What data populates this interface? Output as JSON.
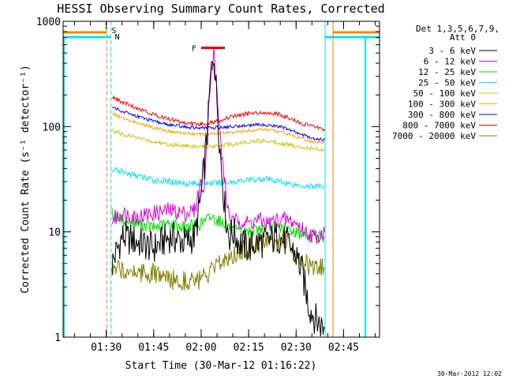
{
  "chart_data": {
    "type": "line",
    "title": "HESSI Observing Summary Count Rates, Corrected",
    "xlabel": "Start Time (30-Mar-12 01:16:22)",
    "ylabel": "Corrected Count Rate (s⁻¹ detector⁻¹)",
    "yscale": "log",
    "ylim": [
      1,
      1000
    ],
    "xlim": [
      "01:16:22",
      "02:56:22"
    ],
    "x_ticks": [
      "01:30",
      "01:45",
      "02:00",
      "02:15",
      "02:30",
      "02:45"
    ],
    "y_ticks": [
      "1",
      "10",
      "100",
      "1000"
    ],
    "grid": false,
    "legend_position": "right",
    "legend_header": [
      "Det 1,3,5,6,7,9,",
      "Att 0"
    ],
    "timestamp": "30-Mar-2012 12:02",
    "markers": {
      "saa_label": "S",
      "night_label": "N",
      "flare_label": "F",
      "saa_color": "#ff8000",
      "night_color": "#00e5ee",
      "flare_color": "#e00000",
      "saa_end": "01:30:10",
      "night_end": "01:31:30",
      "night_start": "02:39:10",
      "saa_start": "02:41:40",
      "instrument_off_before": "01:31:50",
      "instrument_off_after": "02:39:00",
      "flare_interval": [
        "02:00:00",
        "02:07:30"
      ],
      "flare_level": 560
    },
    "series": [
      {
        "name": "3 - 6 keV",
        "color": "#000000",
        "x": [
          "01:31:50",
          "01:35",
          "01:40",
          "01:45",
          "01:50",
          "01:55",
          "01:58",
          "02:00",
          "02:02",
          "02:03",
          "02:04",
          "02:05",
          "02:06",
          "02:07",
          "02:08",
          "02:09",
          "02:10",
          "02:12",
          "02:15",
          "02:18",
          "02:21",
          "02:24",
          "02:27",
          "02:30",
          "02:32",
          "02:34",
          "02:36",
          "02:39"
        ],
        "values": [
          5,
          9,
          8,
          7,
          9,
          8,
          9,
          22,
          90,
          300,
          500,
          180,
          60,
          25,
          12,
          9,
          10,
          8,
          7,
          8,
          8,
          9,
          8,
          6,
          4,
          2,
          1.5,
          1.2
        ]
      },
      {
        "name": "6 - 12 keV",
        "color": "#e000e0",
        "x": [
          "01:31:50",
          "01:35",
          "01:40",
          "01:45",
          "01:50",
          "01:55",
          "01:58",
          "02:00",
          "02:01",
          "02:02",
          "02:03",
          "02:04",
          "02:05",
          "02:06",
          "02:07",
          "02:08",
          "02:09",
          "02:10",
          "02:12",
          "02:15",
          "02:18",
          "02:21",
          "02:24",
          "02:27",
          "02:30",
          "02:33",
          "02:36",
          "02:39"
        ],
        "values": [
          13,
          15,
          14,
          15,
          16,
          15,
          16,
          30,
          22,
          120,
          300,
          520,
          200,
          80,
          40,
          20,
          14,
          12,
          13,
          12,
          13,
          12,
          13,
          13,
          12,
          10,
          9,
          10
        ]
      },
      {
        "name": "12 - 25 keV",
        "color": "#00e000",
        "x": [
          "01:31:50",
          "01:35",
          "01:40",
          "01:45",
          "01:50",
          "01:55",
          "02:00",
          "02:03",
          "02:05",
          "02:08",
          "02:10",
          "02:15",
          "02:20",
          "02:25",
          "02:30",
          "02:35",
          "02:39"
        ],
        "values": [
          15,
          13,
          12,
          11,
          12,
          11,
          12,
          14,
          13,
          12,
          10,
          10,
          11,
          11,
          10,
          9,
          9
        ]
      },
      {
        "name": "25 - 50 keV",
        "color": "#00e5ee",
        "x": [
          "01:31:50",
          "01:35",
          "01:40",
          "01:45",
          "01:50",
          "01:55",
          "02:00",
          "02:05",
          "02:10",
          "02:15",
          "02:20",
          "02:25",
          "02:30",
          "02:35",
          "02:39"
        ],
        "values": [
          39,
          37,
          34,
          31,
          30,
          29,
          29,
          29,
          30,
          31,
          32,
          30,
          28,
          27,
          27
        ]
      },
      {
        "name": "50 - 100 keV",
        "color": "#c8c800",
        "x": [
          "01:31:50",
          "01:35",
          "01:40",
          "01:45",
          "01:50",
          "01:55",
          "02:00",
          "02:05",
          "02:10",
          "02:15",
          "02:20",
          "02:25",
          "02:30",
          "02:35",
          "02:39"
        ],
        "values": [
          92,
          85,
          78,
          72,
          68,
          66,
          64,
          66,
          68,
          72,
          74,
          70,
          65,
          62,
          60
        ]
      },
      {
        "name": "100 - 300 keV",
        "color": "#ffa500",
        "x": [
          "01:31:50",
          "01:35",
          "01:40",
          "01:45",
          "01:50",
          "01:55",
          "02:00",
          "02:05",
          "02:10",
          "02:15",
          "02:20",
          "02:25",
          "02:30",
          "02:35",
          "02:39"
        ],
        "values": [
          135,
          120,
          108,
          98,
          90,
          86,
          84,
          86,
          88,
          92,
          94,
          90,
          80,
          72,
          70
        ]
      },
      {
        "name": "300 - 800 keV",
        "color": "#0000ff",
        "x": [
          "01:31:50",
          "01:35",
          "01:40",
          "01:45",
          "01:50",
          "01:55",
          "02:00",
          "02:05",
          "02:10",
          "02:15",
          "02:20",
          "02:25",
          "02:30",
          "02:35",
          "02:39"
        ],
        "values": [
          155,
          140,
          125,
          112,
          104,
          99,
          97,
          98,
          100,
          103,
          104,
          100,
          88,
          78,
          75
        ]
      },
      {
        "name": "800 - 7000 keV",
        "color": "#ff0000",
        "x": [
          "01:31:50",
          "01:35",
          "01:40",
          "01:45",
          "01:50",
          "01:55",
          "02:00",
          "02:05",
          "02:10",
          "02:15",
          "02:20",
          "02:25",
          "02:30",
          "02:35",
          "02:39"
        ],
        "values": [
          190,
          170,
          150,
          130,
          118,
          108,
          105,
          112,
          125,
          133,
          137,
          130,
          112,
          100,
          95
        ]
      },
      {
        "name": "7000 - 20000 keV",
        "color": "#808000",
        "x": [
          "01:31:50",
          "01:35",
          "01:40",
          "01:45",
          "01:50",
          "01:55",
          "02:00",
          "02:03",
          "02:06",
          "02:09",
          "02:12",
          "02:15",
          "02:18",
          "02:21",
          "02:24",
          "02:27",
          "02:30",
          "02:33",
          "02:36",
          "02:39"
        ],
        "values": [
          4,
          4.5,
          4.2,
          4,
          3.5,
          3.5,
          3.5,
          4,
          5,
          6,
          6.5,
          7,
          8,
          8,
          8,
          8,
          6,
          5,
          4.5,
          4.5
        ]
      }
    ]
  }
}
